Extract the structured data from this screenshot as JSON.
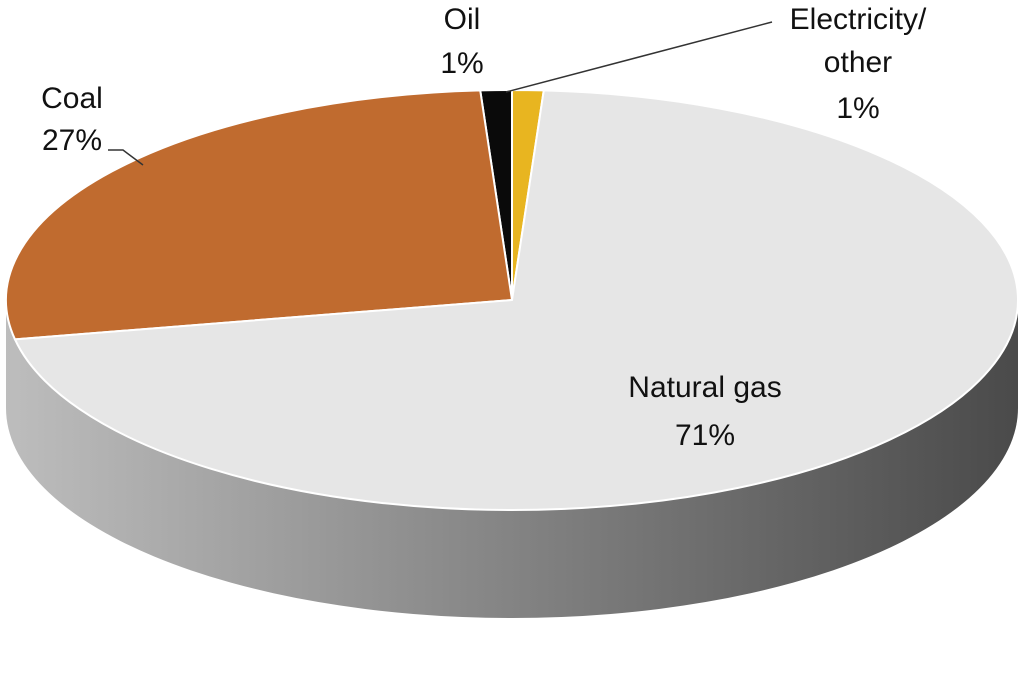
{
  "chart_data": {
    "type": "pie",
    "style": "3d",
    "start": "12 o'clock",
    "direction": "counterclockwise",
    "slices": [
      {
        "name": "Natural gas",
        "value": 71,
        "value_label": "71%",
        "color": "#e6e6e6"
      },
      {
        "name": "Coal",
        "value": 27,
        "value_label": "27%",
        "color": "#c06b2f"
      },
      {
        "name": "Oil",
        "value": 1,
        "value_label": "1%",
        "color": "#0a0a0a"
      },
      {
        "name": "Electricity/ other",
        "name_lines": [
          "Electricity/",
          "other"
        ],
        "value": 1,
        "value_label": "1%",
        "color": "#e8b520"
      }
    ],
    "side_colors": {
      "light": "#bdbdbd",
      "dark": "#4a4a4a"
    }
  }
}
